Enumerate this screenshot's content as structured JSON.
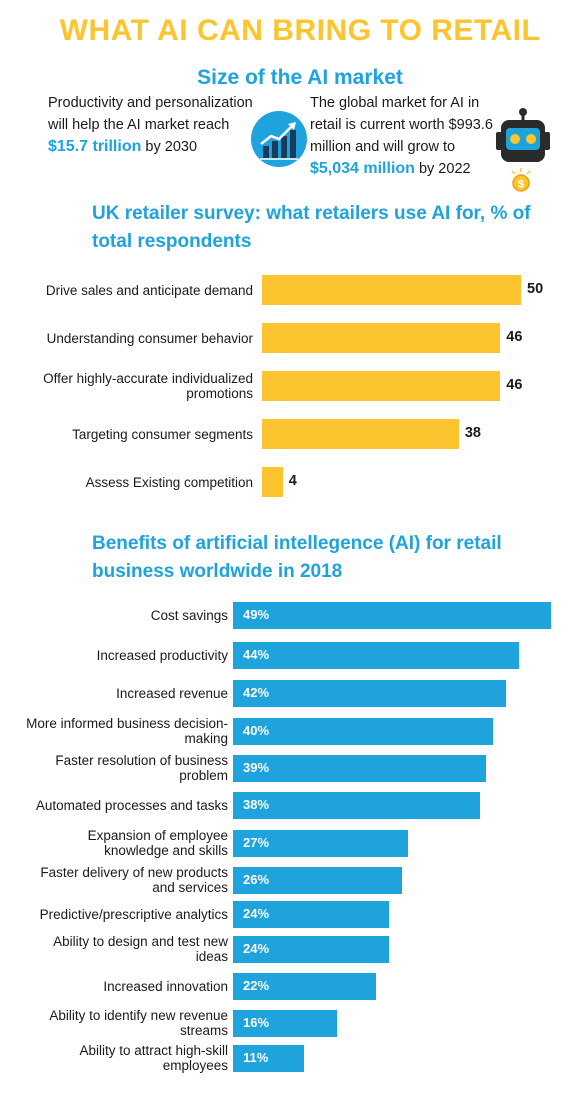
{
  "title": "WHAT AI CAN BRING TO RETAIL",
  "market": {
    "heading": "Size of the AI market",
    "left_pre": "Productivity and personalization will help the AI market reach",
    "left_hl": "$15.7 trillion",
    "left_post": "by 2030",
    "right_pre": "The global market for AI in retail is current worth $993.6 million and will grow to",
    "right_hl": "$5,034 million",
    "right_post": "by 2022",
    "icons": [
      "growth-chart-icon",
      "robot-icon",
      "coin-icon"
    ],
    "colors": {
      "accent_yellow": "#fcc52f",
      "accent_blue": "#1fa3dc"
    }
  },
  "chart_data": [
    {
      "type": "bar",
      "orientation": "horizontal",
      "title": "UK retailer survey:  what retailers use AI for, % of total respondents",
      "categories": [
        "Drive sales and anticipate demand",
        "Understanding consumer behavior",
        "Offer highly-accurate individualized promotions",
        "Targeting consumer segments",
        "Assess Existing competition"
      ],
      "values": [
        50,
        46,
        46,
        38,
        4
      ],
      "value_labels": [
        "50",
        "46",
        "46",
        "38",
        "4"
      ],
      "xlim": [
        0,
        50
      ],
      "color": "#fcc52f",
      "grid": false,
      "legend": "none"
    },
    {
      "type": "bar",
      "orientation": "horizontal",
      "title": "Benefits of artificial intellegence (AI) for retail business worldwide in 2018",
      "categories": [
        "Cost savings",
        "Increased productivity",
        "Increased revenue",
        "More informed business decision-making",
        "Faster resolution of business problem",
        "Automated processes and tasks",
        "Expansion of employee knowledge and skills",
        "Faster delivery of new products and services",
        "Predictive/prescriptive analytics",
        "Ability to design and test new ideas",
        "Increased innovation",
        "Ability to identify new revenue streams",
        "Ability to attract high-skill employees"
      ],
      "values": [
        49,
        44,
        42,
        40,
        39,
        38,
        27,
        26,
        24,
        24,
        22,
        16,
        11
      ],
      "value_labels": [
        "49%",
        "44%",
        "42%",
        "40%",
        "39%",
        "38%",
        "27%",
        "26%",
        "24%",
        "24%",
        "22%",
        "16%",
        "11%"
      ],
      "xlim": [
        0,
        49
      ],
      "color": "#1fa3dc",
      "grid": false,
      "legend": "none"
    }
  ]
}
